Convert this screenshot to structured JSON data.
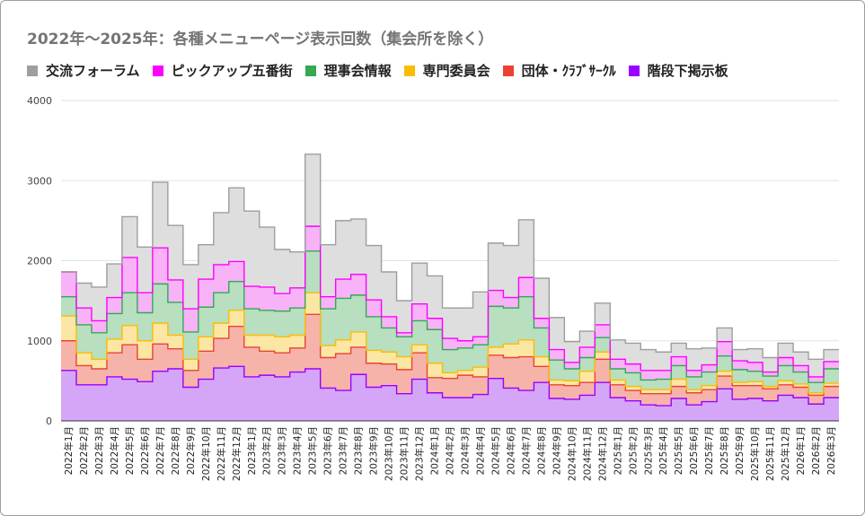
{
  "chart_data": {
    "type": "area",
    "stacked": true,
    "step": true,
    "title": "2022年〜2025年：各種メニューページ表示回数（集会所を除く）",
    "xlabel": "",
    "ylabel": "",
    "ylim": [
      0,
      4000
    ],
    "yticks": [
      0,
      1000,
      2000,
      3000,
      4000
    ],
    "grid": "horizontal",
    "legend_position": "top",
    "categories": [
      "2022年1月",
      "2022年2月",
      "2022年3月",
      "2022年4月",
      "2022年5月",
      "2022年6月",
      "2022年7月",
      "2022年8月",
      "2022年9月",
      "2022年10月",
      "2022年11月",
      "2022年12月",
      "2023年1月",
      "2023年2月",
      "2023年3月",
      "2023年4月",
      "2023年5月",
      "2023年6月",
      "2023年7月",
      "2023年8月",
      "2023年9月",
      "2023年10月",
      "2023年11月",
      "2023年12月",
      "2024年1月",
      "2024年2月",
      "2024年3月",
      "2024年4月",
      "2024年5月",
      "2024年6月",
      "2024年7月",
      "2024年8月",
      "2024年9月",
      "2024年10月",
      "2024年11月",
      "2024年12月",
      "2025年1月",
      "2025年2月",
      "2025年3月",
      "2025年4月",
      "2025年5月",
      "2025年6月",
      "2025年7月",
      "2025年8月",
      "2025年9月",
      "2025年10月",
      "2025年11月",
      "2025年12月",
      "2026年1月",
      "2026年2月",
      "2026年3月"
    ],
    "series": [
      {
        "name": "階段下掲示板",
        "color": "#9900ff",
        "fill": "#d5a6f8",
        "values": [
          630,
          450,
          450,
          550,
          520,
          490,
          620,
          650,
          420,
          520,
          660,
          680,
          550,
          570,
          550,
          610,
          650,
          410,
          380,
          580,
          420,
          440,
          340,
          520,
          350,
          290,
          290,
          330,
          530,
          410,
          380,
          480,
          280,
          270,
          320,
          480,
          290,
          250,
          200,
          190,
          280,
          200,
          240,
          400,
          270,
          280,
          250,
          320,
          290,
          210,
          290
        ]
      },
      {
        "name": "団体・ｸﾗﾌﾞｻｰｸﾙ",
        "color": "#ea4335",
        "fill": "#f6b3aa",
        "values": [
          370,
          240,
          200,
          300,
          430,
          280,
          340,
          250,
          210,
          350,
          370,
          500,
          370,
          300,
          300,
          300,
          680,
          380,
          460,
          340,
          300,
          270,
          300,
          330,
          190,
          240,
          280,
          220,
          290,
          380,
          420,
          200,
          170,
          170,
          160,
          290,
          160,
          130,
          140,
          150,
          150,
          150,
          150,
          160,
          170,
          160,
          150,
          130,
          130,
          110,
          140
        ]
      },
      {
        "name": "専門委員会",
        "color": "#fbbc04",
        "fill": "#fbe7a3",
        "values": [
          310,
          160,
          120,
          170,
          240,
          230,
          260,
          170,
          140,
          180,
          190,
          200,
          150,
          200,
          200,
          160,
          270,
          150,
          170,
          190,
          160,
          150,
          160,
          100,
          180,
          70,
          60,
          120,
          100,
          170,
          210,
          120,
          60,
          60,
          140,
          90,
          60,
          50,
          50,
          50,
          90,
          40,
          50,
          60,
          40,
          50,
          30,
          50,
          40,
          30,
          40
        ]
      },
      {
        "name": "理事会情報",
        "color": "#34a853",
        "fill": "#b7dfc0",
        "values": [
          240,
          350,
          330,
          320,
          410,
          350,
          490,
          410,
          340,
          370,
          380,
          360,
          330,
          310,
          320,
          340,
          520,
          460,
          520,
          460,
          420,
          300,
          250,
          300,
          420,
          290,
          280,
          280,
          510,
          450,
          540,
          360,
          250,
          150,
          170,
          180,
          140,
          170,
          120,
          130,
          170,
          160,
          170,
          190,
          160,
          130,
          130,
          190,
          150,
          130,
          180
        ]
      },
      {
        "name": "ピックアップ五番街",
        "color": "#ff00ff",
        "fill": "#f8b3f8",
        "values": [
          310,
          210,
          150,
          200,
          440,
          250,
          450,
          280,
          290,
          350,
          350,
          250,
          280,
          290,
          220,
          250,
          310,
          150,
          240,
          260,
          210,
          140,
          50,
          210,
          140,
          140,
          90,
          100,
          200,
          130,
          240,
          120,
          130,
          80,
          130,
          160,
          120,
          110,
          120,
          110,
          110,
          80,
          90,
          180,
          110,
          110,
          50,
          100,
          80,
          70,
          90
        ]
      },
      {
        "name": "交流フォーラム",
        "color": "#9e9e9e",
        "fill": "#dedede",
        "values": [
          0,
          310,
          420,
          420,
          510,
          570,
          820,
          680,
          550,
          430,
          650,
          920,
          940,
          750,
          550,
          450,
          900,
          650,
          730,
          690,
          680,
          560,
          400,
          510,
          530,
          380,
          410,
          560,
          590,
          650,
          720,
          500,
          400,
          260,
          200,
          270,
          240,
          260,
          260,
          230,
          170,
          270,
          210,
          170,
          140,
          170,
          180,
          180,
          170,
          220,
          150
        ]
      }
    ]
  }
}
